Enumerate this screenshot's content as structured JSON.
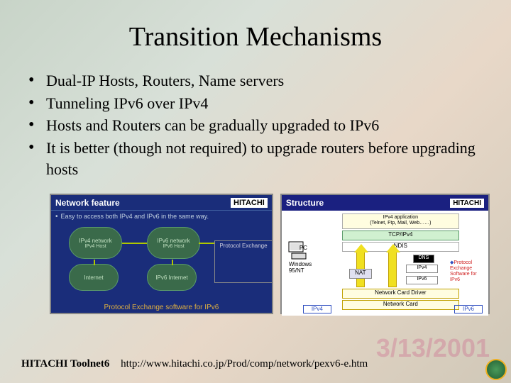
{
  "title": "Transition Mechanisms",
  "bullets": [
    "Dual-IP Hosts, Routers, Name servers",
    "Tunneling IPv6 over IPv4",
    "Hosts and Routers can be gradually upgraded to IPv6",
    "It is better (though not required) to upgrade routers before upgrading hosts"
  ],
  "diagram_left": {
    "header_title": "Network feature",
    "header_logo": "HITACHI",
    "subtitle": "Easy to access both IPv4 and IPv6 in the same way.",
    "cloud_v4_title": "IPv4 network",
    "cloud_v4_host": "IPv4 Host",
    "cloud_v6_title": "IPv6 network",
    "cloud_v6_host": "IPv6 Host",
    "cloud_internet": "Internet",
    "cloud_ipv6_internet": "IPv6 Internet",
    "server_title": "Protocol Exchange",
    "footer": "Protocol Exchange software for IPv6"
  },
  "diagram_right": {
    "header_title": "Structure",
    "header_logo": "HITACHI",
    "app_box_line1": "IPv4 application",
    "app_box_line2": "(Telnet, Ftp, Mail, Web……)",
    "tcp_box": "TCP/IPv4",
    "ndis_box": "NDIS",
    "pc_label": "PC",
    "win_label": "Windows\n95/NT",
    "nat_label": "NAT",
    "ipv4_label": "IPv4",
    "ipv6_label": "IPv6",
    "dns_label": "DNS",
    "pe_box": "Protocol Exchange Software for IPv6",
    "ncd_box": "Network Card Driver",
    "nc_box": "Network Card",
    "bottom_v4": "IPv4",
    "bottom_v6": "IPv6"
  },
  "footer": {
    "label": "HITACHI Toolnet6",
    "url": "http://www.hitachi.co.jp/Prod/comp/network/pexv6-e.htm"
  },
  "watermark": "3/13/2001",
  "colors": {
    "diagram_blue": "#1a2d7a",
    "cloud_green": "#3a6a4a",
    "arrow_yellow": "#f0e020",
    "box_cream": "#fffde0"
  }
}
